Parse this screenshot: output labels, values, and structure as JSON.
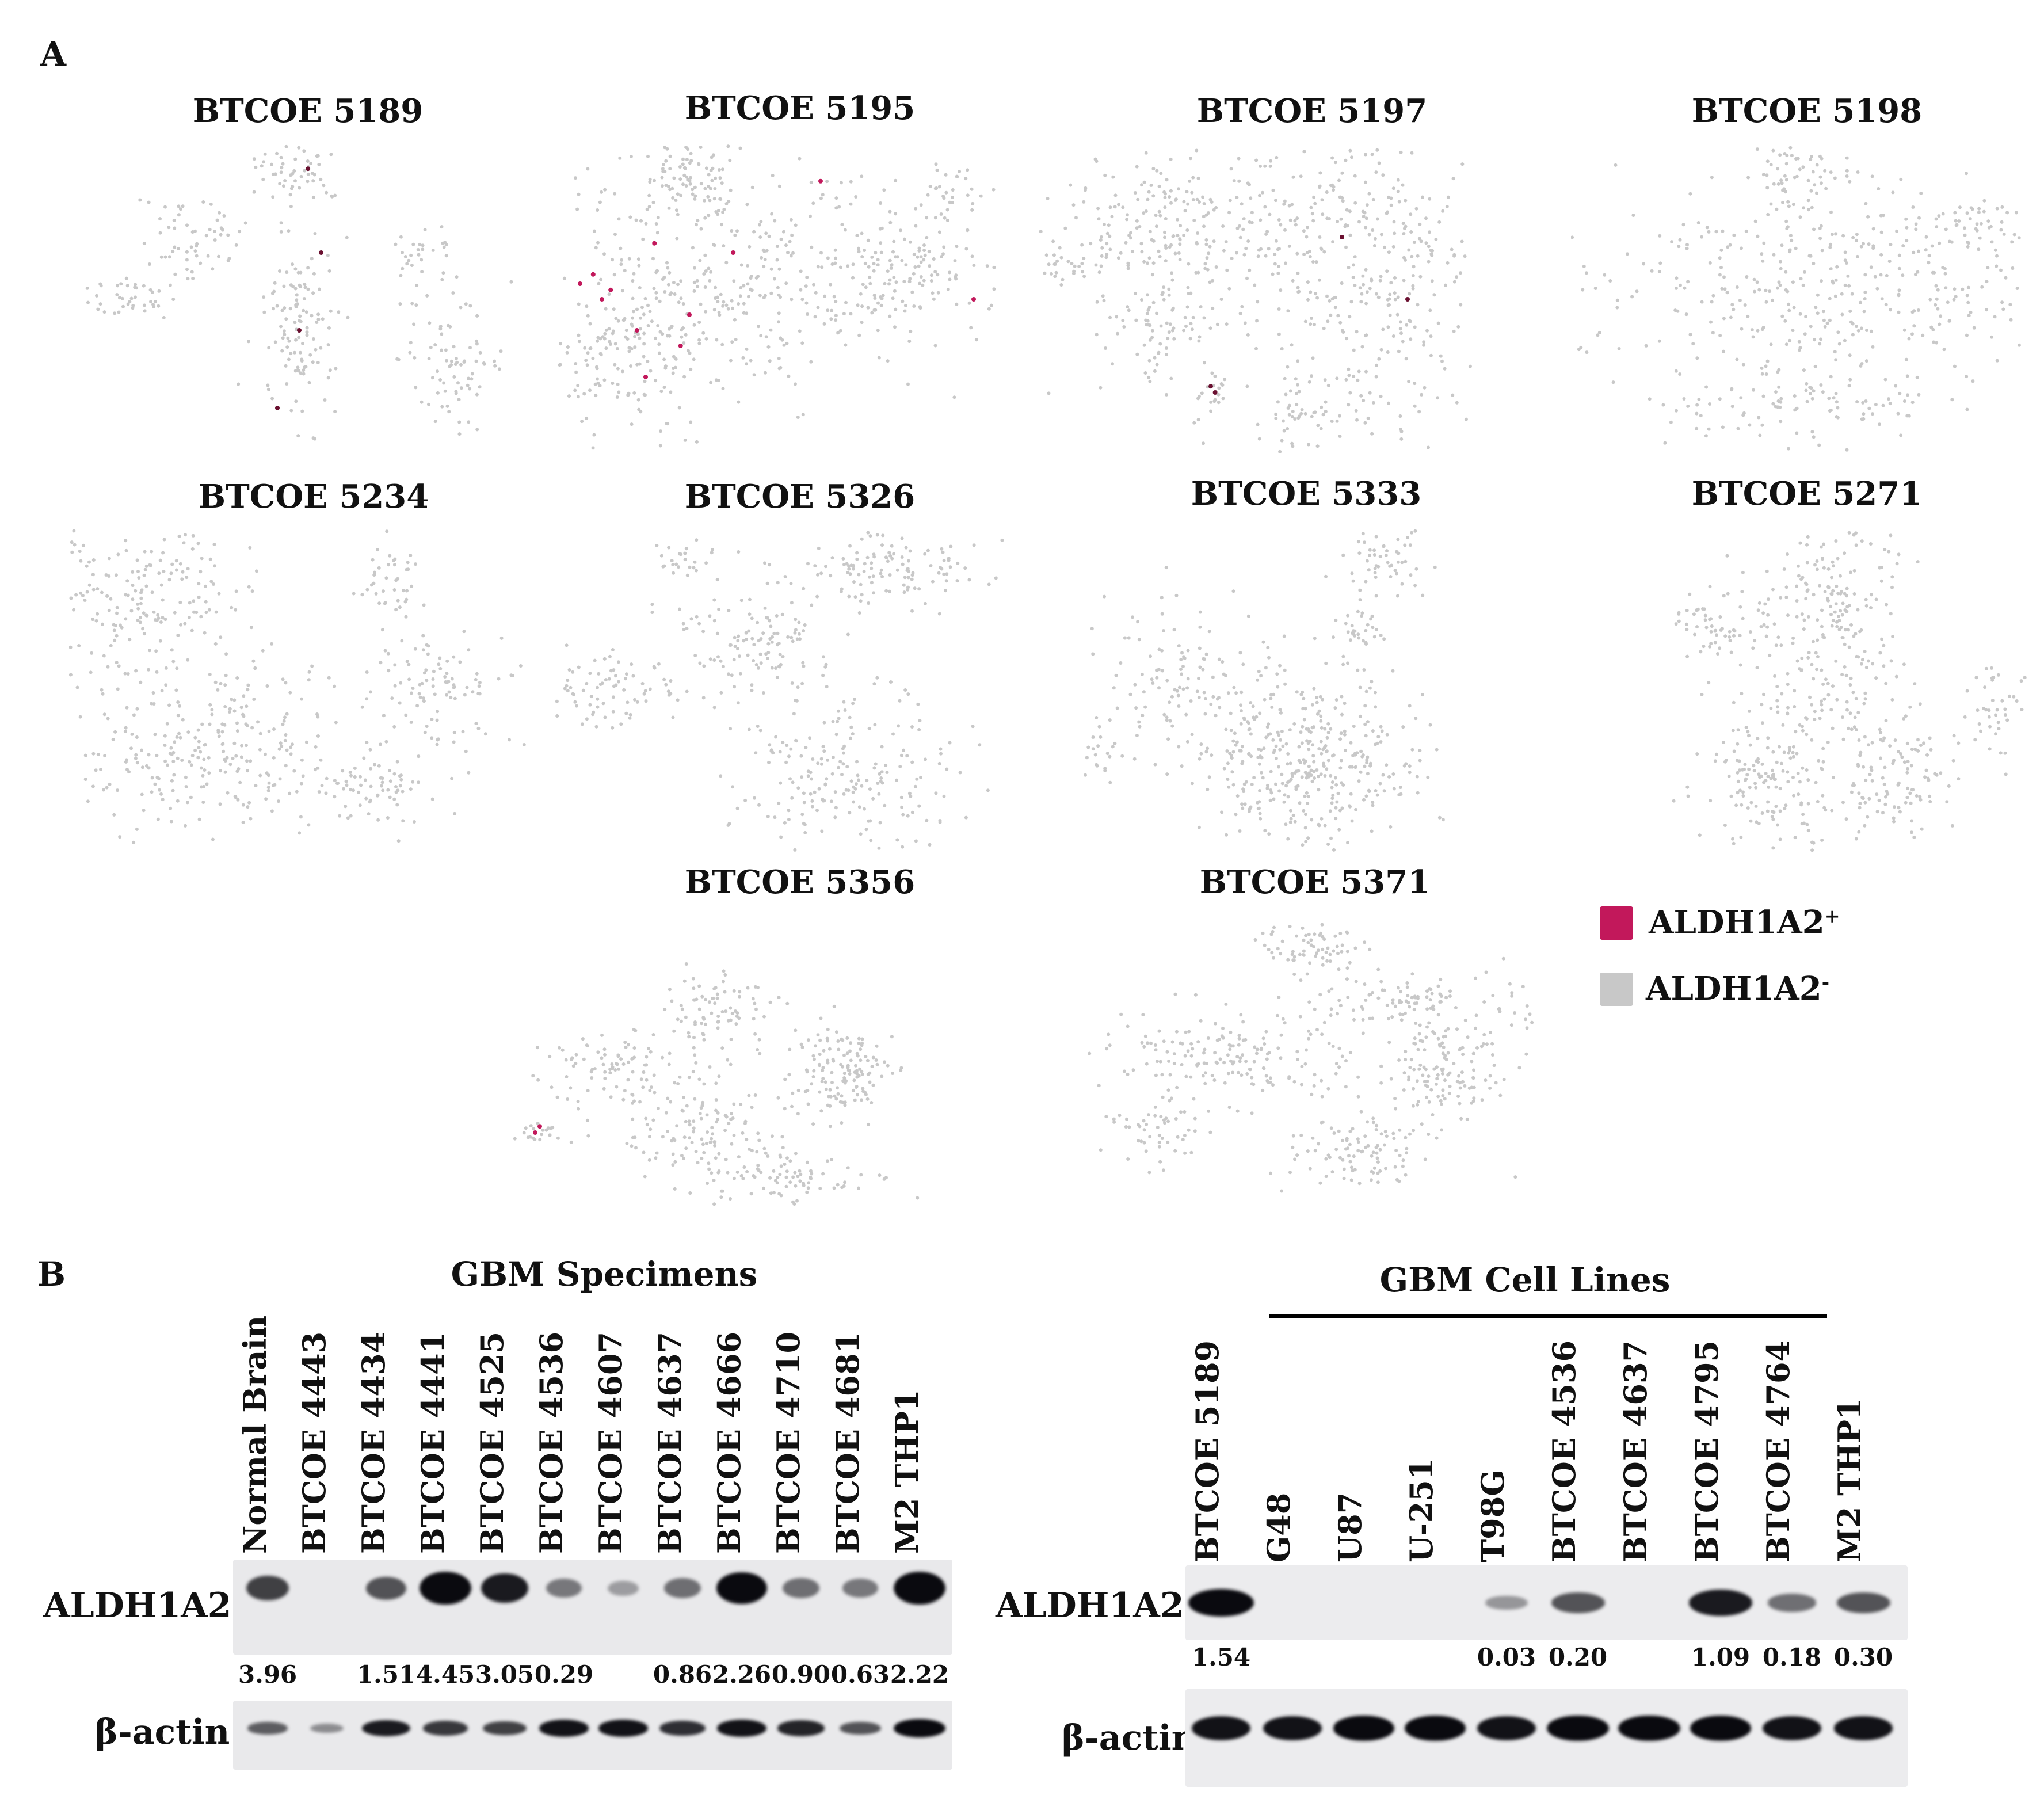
{
  "panel_a": {
    "letter": "A",
    "plots": [
      {
        "title": "BTCOE 5189"
      },
      {
        "title": "BTCOE 5195"
      },
      {
        "title": "BTCOE 5197"
      },
      {
        "title": "BTCOE 5198"
      },
      {
        "title": "BTCOE 5234"
      },
      {
        "title": "BTCOE 5326"
      },
      {
        "title": "BTCOE 5333"
      },
      {
        "title": "BTCOE 5271"
      },
      {
        "title": "BTCOE 5356"
      },
      {
        "title": "BTCOE 5371"
      }
    ],
    "legend": {
      "positive_label": "ALDH1A2",
      "positive_sign": "+",
      "negative_label": "ALDH1A2",
      "negative_sign": "-",
      "positive_color": "#c2185b",
      "negative_color": "#c8c8c8"
    }
  },
  "panel_b": {
    "letter": "B",
    "left": {
      "title": "GBM Specimens",
      "lanes": [
        "Normal Brain",
        "BTCOE 4443",
        "BTCOE 4434",
        "BTCOE 4441",
        "BTCOE 4525",
        "BTCOE 4536",
        "BTCOE 4607",
        "BTCOE 4637",
        "BTCOE 4666",
        "BTCOE 4710",
        "BTCOE 4681",
        "M2 THP1"
      ],
      "row1_label": "ALDH1A2",
      "row2_label": "β-actin",
      "quant": [
        "3.96",
        "",
        "1.51",
        "4.45",
        "3.05",
        "0.29",
        "",
        "0.86",
        "2.26",
        "0.90",
        "0.63",
        "2.22"
      ],
      "aldh_intensity": [
        0.6,
        0,
        0.5,
        1.0,
        0.8,
        0.3,
        0.1,
        0.35,
        0.95,
        0.35,
        0.3,
        1.0
      ],
      "actin_intensity": [
        0.45,
        0.2,
        0.8,
        0.65,
        0.6,
        0.85,
        0.85,
        0.7,
        0.85,
        0.75,
        0.5,
        0.95
      ]
    },
    "right": {
      "title": "GBM Cell Lines",
      "lanes": [
        "BTCOE 5189",
        "G48",
        "U87",
        "U-251",
        "T98G",
        "BTCOE 4536",
        "BTCOE 4637",
        "BTCOE 4795",
        "BTCOE 4764",
        "M2 THP1"
      ],
      "row1_label": "ALDH1A2",
      "row2_label": "β-actin",
      "quant": [
        "1.54",
        "",
        "",
        "",
        "0.03",
        "0.20",
        "",
        "1.09",
        "0.18",
        "0.30"
      ],
      "aldh_intensity": [
        0.9,
        0,
        0,
        0,
        0.15,
        0.5,
        0,
        0.8,
        0.35,
        0.5
      ],
      "actin_intensity": [
        0.85,
        0.85,
        0.9,
        0.9,
        0.85,
        0.95,
        0.95,
        0.9,
        0.85,
        0.85
      ]
    }
  }
}
